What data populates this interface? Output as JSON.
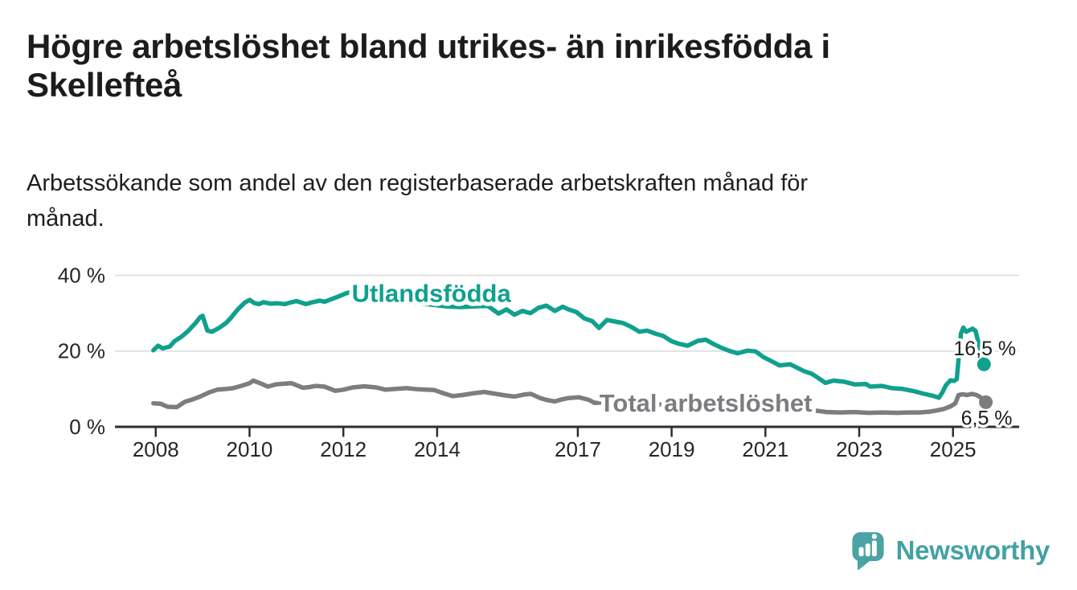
{
  "header": {
    "title_lines": [
      "Högre arbetslöshet bland utrikes- än inrikesfödda i",
      "Skellefteå"
    ],
    "subtitle_lines": [
      "Arbetssökande som andel av den registerbaserade arbetskraften månad för",
      "månad."
    ]
  },
  "footer": {
    "brand": "Newsworthy",
    "brand_color": "#43a1a3",
    "icon_color": "#4ba3a4",
    "logo_icon": "bar-chart-speech-bubble-icon"
  },
  "chart_data": {
    "type": "line",
    "title": "Högre arbetslöshet bland utrikes- än inrikesfödda i Skellefteå",
    "subtitle": "Arbetssökande som andel av den registerbaserade arbetskraften månad för månad.",
    "unit": "%",
    "grid": "horizontal",
    "legend_position": "inline-labels",
    "xlim": [
      2007.13,
      2026.41
    ],
    "ylim": [
      0,
      43.7
    ],
    "colors": {
      "grid": "#d9d9d9",
      "axis": "#2e2e2e",
      "tick_text": "#262626"
    },
    "x_axis": {
      "ticks": [
        {
          "value": 2008,
          "label": "2008"
        },
        {
          "value": 2010,
          "label": "2010"
        },
        {
          "value": 2012,
          "label": "2012"
        },
        {
          "value": 2014,
          "label": "2014"
        },
        {
          "value": 2017,
          "label": "2017"
        },
        {
          "value": 2019,
          "label": "2019"
        },
        {
          "value": 2021,
          "label": "2021"
        },
        {
          "value": 2023,
          "label": "2023"
        },
        {
          "value": 2025,
          "label": "2025"
        }
      ]
    },
    "y_axis": {
      "ticks": [
        {
          "value": 0,
          "label": "0 %"
        },
        {
          "value": 20,
          "label": "20 %"
        },
        {
          "value": 40,
          "label": "40 %"
        }
      ]
    },
    "series": [
      {
        "name": "Utlandsfödda",
        "color": "#10a08e",
        "line_label": "Utlandsfödda",
        "line_label_anchor": {
          "x": 2012.18,
          "y": 33.0
        },
        "end_value": 16.5,
        "end_label": "16,5 %",
        "end_label_position": "above",
        "points": [
          [
            2007.95,
            20.2
          ],
          [
            2008.05,
            21.4
          ],
          [
            2008.15,
            20.7
          ],
          [
            2008.3,
            21.2
          ],
          [
            2008.4,
            22.6
          ],
          [
            2008.55,
            23.8
          ],
          [
            2008.7,
            25.4
          ],
          [
            2008.85,
            27.4
          ],
          [
            2008.95,
            29.0
          ],
          [
            2009.0,
            29.3
          ],
          [
            2009.1,
            25.4
          ],
          [
            2009.2,
            25.1
          ],
          [
            2009.35,
            26.1
          ],
          [
            2009.5,
            27.4
          ],
          [
            2009.6,
            28.7
          ],
          [
            2009.75,
            31.0
          ],
          [
            2009.9,
            32.8
          ],
          [
            2010.0,
            33.5
          ],
          [
            2010.1,
            32.7
          ],
          [
            2010.2,
            32.4
          ],
          [
            2010.3,
            32.9
          ],
          [
            2010.45,
            32.5
          ],
          [
            2010.6,
            32.6
          ],
          [
            2010.75,
            32.4
          ],
          [
            2010.9,
            32.9
          ],
          [
            2011.0,
            33.2
          ],
          [
            2011.1,
            32.8
          ],
          [
            2011.2,
            32.4
          ],
          [
            2011.35,
            32.9
          ],
          [
            2011.5,
            33.3
          ],
          [
            2011.6,
            33.0
          ],
          [
            2011.75,
            33.7
          ],
          [
            2011.9,
            34.4
          ],
          [
            2012.05,
            35.2
          ],
          [
            2012.15,
            35.6
          ],
          [
            2012.25,
            35.0
          ],
          [
            2012.35,
            34.7
          ],
          [
            2012.45,
            35.2
          ],
          [
            2012.6,
            34.8
          ],
          [
            2012.8,
            34.2
          ],
          [
            2013.0,
            33.8
          ],
          [
            2013.3,
            33.1
          ],
          [
            2013.6,
            32.6
          ],
          [
            2013.9,
            32.2
          ],
          [
            2014.2,
            31.8
          ],
          [
            2014.5,
            31.6
          ],
          [
            2014.8,
            31.8
          ],
          [
            2015.08,
            31.9
          ],
          [
            2015.31,
            29.9
          ],
          [
            2015.48,
            31.0
          ],
          [
            2015.65,
            29.6
          ],
          [
            2015.82,
            30.6
          ],
          [
            2015.99,
            30.0
          ],
          [
            2016.16,
            31.4
          ],
          [
            2016.33,
            32.0
          ],
          [
            2016.51,
            30.6
          ],
          [
            2016.68,
            31.7
          ],
          [
            2016.8,
            31.0
          ],
          [
            2016.97,
            30.3
          ],
          [
            2017.14,
            28.6
          ],
          [
            2017.31,
            27.9
          ],
          [
            2017.45,
            26.1
          ],
          [
            2017.62,
            28.2
          ],
          [
            2017.79,
            27.8
          ],
          [
            2017.96,
            27.4
          ],
          [
            2018.14,
            26.4
          ],
          [
            2018.31,
            25.1
          ],
          [
            2018.48,
            25.4
          ],
          [
            2018.65,
            24.6
          ],
          [
            2018.82,
            24.0
          ],
          [
            2019.0,
            22.6
          ],
          [
            2019.16,
            21.9
          ],
          [
            2019.34,
            21.4
          ],
          [
            2019.56,
            22.7
          ],
          [
            2019.73,
            23.0
          ],
          [
            2019.9,
            21.8
          ],
          [
            2020.07,
            20.8
          ],
          [
            2020.24,
            20.0
          ],
          [
            2020.41,
            19.4
          ],
          [
            2020.62,
            20.1
          ],
          [
            2020.79,
            19.9
          ],
          [
            2020.96,
            18.4
          ],
          [
            2021.15,
            17.2
          ],
          [
            2021.3,
            16.2
          ],
          [
            2021.53,
            16.5
          ],
          [
            2021.82,
            14.7
          ],
          [
            2021.99,
            14.0
          ],
          [
            2022.28,
            11.6
          ],
          [
            2022.45,
            12.2
          ],
          [
            2022.68,
            11.9
          ],
          [
            2022.9,
            11.2
          ],
          [
            2023.14,
            11.3
          ],
          [
            2023.24,
            10.6
          ],
          [
            2023.48,
            10.8
          ],
          [
            2023.7,
            10.2
          ],
          [
            2023.93,
            10.0
          ],
          [
            2024.17,
            9.4
          ],
          [
            2024.39,
            8.7
          ],
          [
            2024.56,
            8.2
          ],
          [
            2024.7,
            7.7
          ],
          [
            2024.78,
            9.2
          ],
          [
            2024.85,
            11.0
          ],
          [
            2024.95,
            12.3
          ],
          [
            2025.02,
            12.1
          ],
          [
            2025.08,
            12.6
          ],
          [
            2025.12,
            18.0
          ],
          [
            2025.17,
            24.6
          ],
          [
            2025.22,
            26.2
          ],
          [
            2025.28,
            25.1
          ],
          [
            2025.35,
            25.5
          ],
          [
            2025.42,
            25.9
          ],
          [
            2025.48,
            25.3
          ],
          [
            2025.58,
            20.5
          ],
          [
            2025.66,
            16.5
          ]
        ]
      },
      {
        "name": "Total arbetslöshet",
        "color": "#7c7c81",
        "line_label": "Total arbetslöshet",
        "line_label_anchor": {
          "x": 2017.46,
          "y": 4.0
        },
        "end_value": 6.5,
        "end_label": "6,5 %",
        "end_label_position": "below",
        "points": [
          [
            2007.95,
            6.2
          ],
          [
            2008.1,
            6.1
          ],
          [
            2008.25,
            5.3
          ],
          [
            2008.45,
            5.2
          ],
          [
            2008.62,
            6.6
          ],
          [
            2008.8,
            7.3
          ],
          [
            2008.95,
            8.0
          ],
          [
            2009.14,
            9.1
          ],
          [
            2009.31,
            9.8
          ],
          [
            2009.5,
            10.0
          ],
          [
            2009.65,
            10.2
          ],
          [
            2009.82,
            10.8
          ],
          [
            2010.0,
            11.5
          ],
          [
            2010.08,
            12.2
          ],
          [
            2010.25,
            11.4
          ],
          [
            2010.39,
            10.6
          ],
          [
            2010.56,
            11.2
          ],
          [
            2010.75,
            11.4
          ],
          [
            2010.9,
            11.5
          ],
          [
            2011.14,
            10.3
          ],
          [
            2011.28,
            10.5
          ],
          [
            2011.42,
            10.8
          ],
          [
            2011.6,
            10.6
          ],
          [
            2011.83,
            9.5
          ],
          [
            2012.0,
            9.8
          ],
          [
            2012.2,
            10.4
          ],
          [
            2012.45,
            10.7
          ],
          [
            2012.7,
            10.4
          ],
          [
            2012.9,
            9.8
          ],
          [
            2013.1,
            10.0
          ],
          [
            2013.35,
            10.2
          ],
          [
            2013.6,
            9.9
          ],
          [
            2013.94,
            9.7
          ],
          [
            2014.15,
            8.8
          ],
          [
            2014.33,
            8.1
          ],
          [
            2014.55,
            8.4
          ],
          [
            2014.75,
            8.8
          ],
          [
            2015.0,
            9.2
          ],
          [
            2015.2,
            8.8
          ],
          [
            2015.45,
            8.3
          ],
          [
            2015.65,
            8.0
          ],
          [
            2015.85,
            8.5
          ],
          [
            2016.0,
            8.7
          ],
          [
            2016.2,
            7.6
          ],
          [
            2016.33,
            7.1
          ],
          [
            2016.51,
            6.7
          ],
          [
            2016.65,
            7.2
          ],
          [
            2016.8,
            7.6
          ],
          [
            2017.02,
            7.8
          ],
          [
            2017.24,
            7.1
          ],
          [
            2017.36,
            6.3
          ],
          [
            2017.6,
            6.5
          ],
          [
            2017.9,
            6.6
          ],
          [
            2018.2,
            6.3
          ],
          [
            2018.5,
            6.1
          ],
          [
            2018.8,
            5.9
          ],
          [
            2019.1,
            5.7
          ],
          [
            2019.4,
            5.5
          ],
          [
            2019.7,
            5.6
          ],
          [
            2020.0,
            6.1
          ],
          [
            2020.3,
            6.5
          ],
          [
            2020.6,
            6.3
          ],
          [
            2020.9,
            5.8
          ],
          [
            2021.2,
            5.3
          ],
          [
            2021.5,
            4.9
          ],
          [
            2021.8,
            4.6
          ],
          [
            2022.05,
            4.3
          ],
          [
            2022.3,
            3.9
          ],
          [
            2022.6,
            3.8
          ],
          [
            2022.9,
            3.9
          ],
          [
            2023.2,
            3.7
          ],
          [
            2023.5,
            3.8
          ],
          [
            2023.8,
            3.7
          ],
          [
            2024.05,
            3.8
          ],
          [
            2024.3,
            3.8
          ],
          [
            2024.5,
            4.0
          ],
          [
            2024.65,
            4.3
          ],
          [
            2024.8,
            4.7
          ],
          [
            2024.95,
            5.4
          ],
          [
            2025.05,
            6.2
          ],
          [
            2025.12,
            8.4
          ],
          [
            2025.2,
            8.6
          ],
          [
            2025.3,
            8.4
          ],
          [
            2025.4,
            8.7
          ],
          [
            2025.5,
            8.4
          ],
          [
            2025.6,
            7.7
          ],
          [
            2025.7,
            6.5
          ]
        ]
      }
    ]
  }
}
